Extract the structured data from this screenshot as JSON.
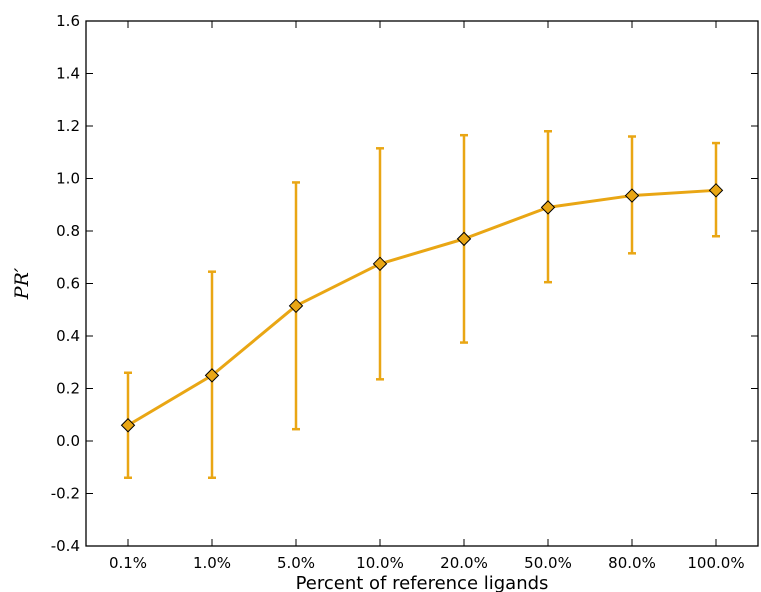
{
  "chart_data": {
    "type": "line",
    "title": "",
    "xlabel": "Percent of reference ligands",
    "ylabel": "PR′",
    "categories": [
      "0.1%",
      "1.0%",
      "5.0%",
      "10.0%",
      "20.0%",
      "50.0%",
      "80.0%",
      "100.0%"
    ],
    "series": [
      {
        "values": [
          0.06,
          0.25,
          0.515,
          0.675,
          0.77,
          0.89,
          0.935,
          0.955
        ],
        "error_lower": [
          -0.14,
          -0.14,
          0.045,
          0.235,
          0.375,
          0.605,
          0.715,
          0.78
        ],
        "error_upper": [
          0.26,
          0.645,
          0.985,
          1.115,
          1.165,
          1.18,
          1.16,
          1.135
        ],
        "color": "#E9A614",
        "marker": "diamond"
      }
    ],
    "ylim": [
      -0.4,
      1.6
    ],
    "yticks": [
      "-0.4",
      "-0.2",
      "0.0",
      "0.2",
      "0.4",
      "0.6",
      "0.8",
      "1.0",
      "1.2",
      "1.4",
      "1.6"
    ],
    "grid": false,
    "legend": "none"
  }
}
